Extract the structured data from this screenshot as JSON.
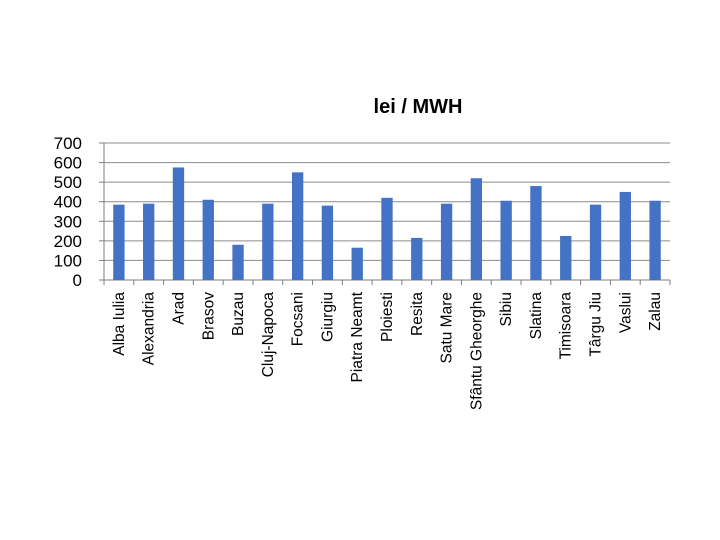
{
  "chart_data": {
    "type": "bar",
    "title": "lei / MWH",
    "xlabel": "",
    "ylabel": "",
    "ylim": [
      0,
      700
    ],
    "yticks": [
      0,
      100,
      200,
      300,
      400,
      500,
      600,
      700
    ],
    "grid": true,
    "legend": "none",
    "bar_color": "#4472c4",
    "categories": [
      "Alba Iulia",
      "Alexandria",
      "Arad",
      "Brasov",
      "Buzau",
      "Cluj-Napoca",
      "Focsani",
      "Giurgiu",
      "Piatra Neamt",
      "Ploiesti",
      "Resita",
      "Satu Mare",
      "Sfântu Gheorghe",
      "Sibiu",
      "Slatina",
      "Timisoara",
      "Târgu Jiu",
      "Vaslui",
      "Zalau"
    ],
    "values": [
      385,
      390,
      575,
      410,
      180,
      390,
      550,
      380,
      165,
      420,
      215,
      390,
      520,
      405,
      480,
      225,
      385,
      450,
      405
    ]
  }
}
